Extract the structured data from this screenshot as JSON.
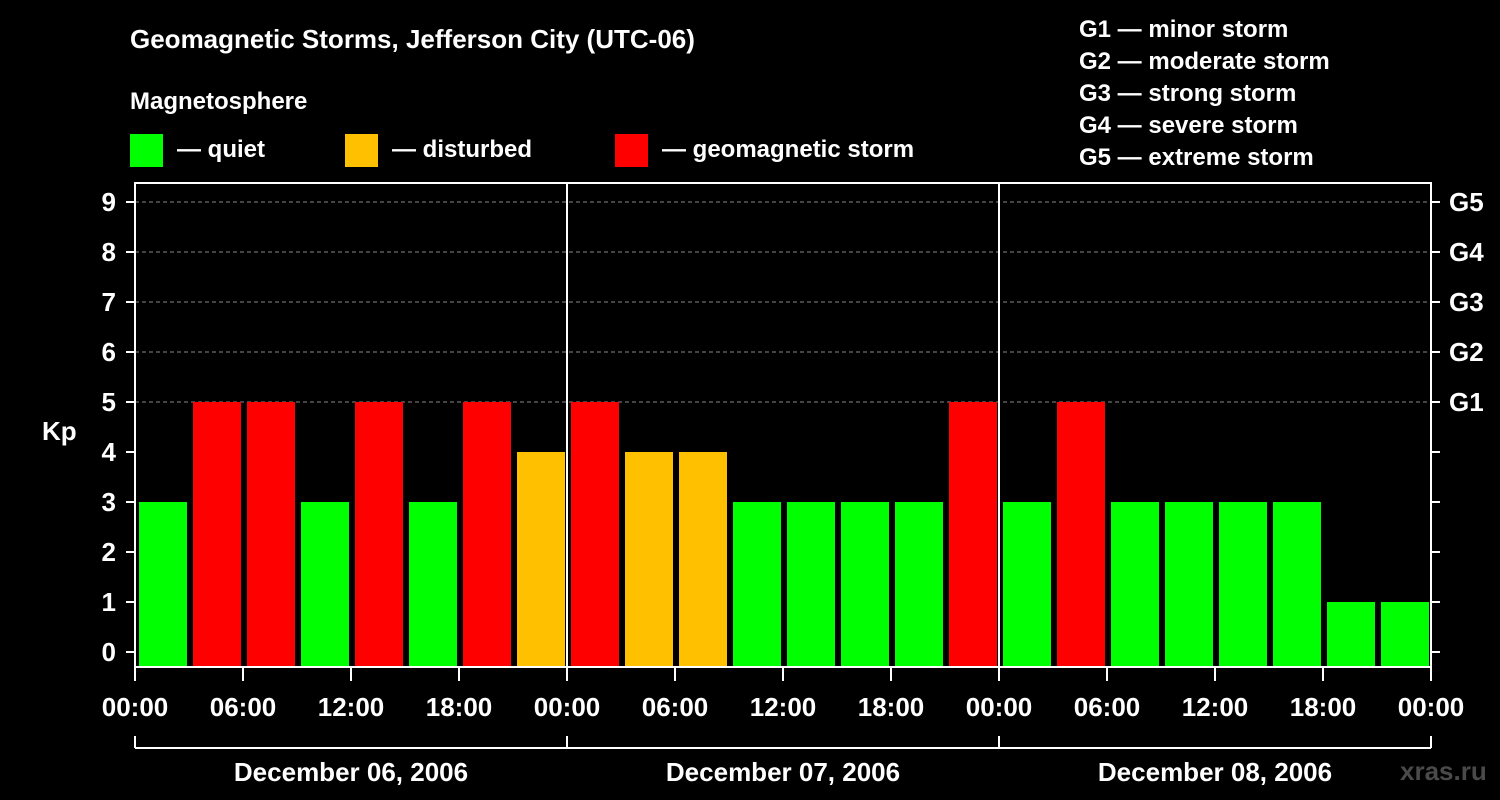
{
  "chart_data": {
    "type": "bar",
    "title": "Geomagnetic Storms, Jefferson City (UTC-06)",
    "legend_heading": "Magnetosphere",
    "legend": [
      {
        "label": "— quiet",
        "color": "#00ff00"
      },
      {
        "label": "— disturbed",
        "color": "#ffc000"
      },
      {
        "label": "— geomagnetic storm",
        "color": "#ff0000"
      }
    ],
    "storm_scale": [
      "G1 — minor storm",
      "G2 — moderate storm",
      "G3 — strong storm",
      "G4 — severe storm",
      "G5 — extreme storm"
    ],
    "ylabel": "Kp",
    "ylim": [
      0,
      9
    ],
    "y_ticks": [
      "0",
      "1",
      "2",
      "3",
      "4",
      "5",
      "6",
      "7",
      "8",
      "9"
    ],
    "right_ticks": [
      {
        "kp": 5,
        "label": "G1"
      },
      {
        "kp": 6,
        "label": "G2"
      },
      {
        "kp": 7,
        "label": "G3"
      },
      {
        "kp": 8,
        "label": "G4"
      },
      {
        "kp": 9,
        "label": "G5"
      }
    ],
    "x_tick_labels": [
      "00:00",
      "06:00",
      "12:00",
      "18:00",
      "00:00",
      "06:00",
      "12:00",
      "18:00",
      "00:00",
      "06:00",
      "12:00",
      "18:00",
      "00:00"
    ],
    "days": [
      "December 06, 2006",
      "December 07, 2006",
      "December 08, 2006"
    ],
    "values": [
      3,
      5,
      5,
      3,
      5,
      3,
      5,
      4,
      5,
      4,
      4,
      3,
      3,
      3,
      3,
      5,
      3,
      5,
      3,
      3,
      3,
      3,
      1,
      1
    ],
    "colors": {
      "quiet": "#00ff00",
      "disturbed": "#ffc000",
      "storm": "#ff0000"
    },
    "thresholds": {
      "disturbed": 4,
      "storm": 5
    },
    "grid": true
  },
  "watermark": "xras.ru"
}
